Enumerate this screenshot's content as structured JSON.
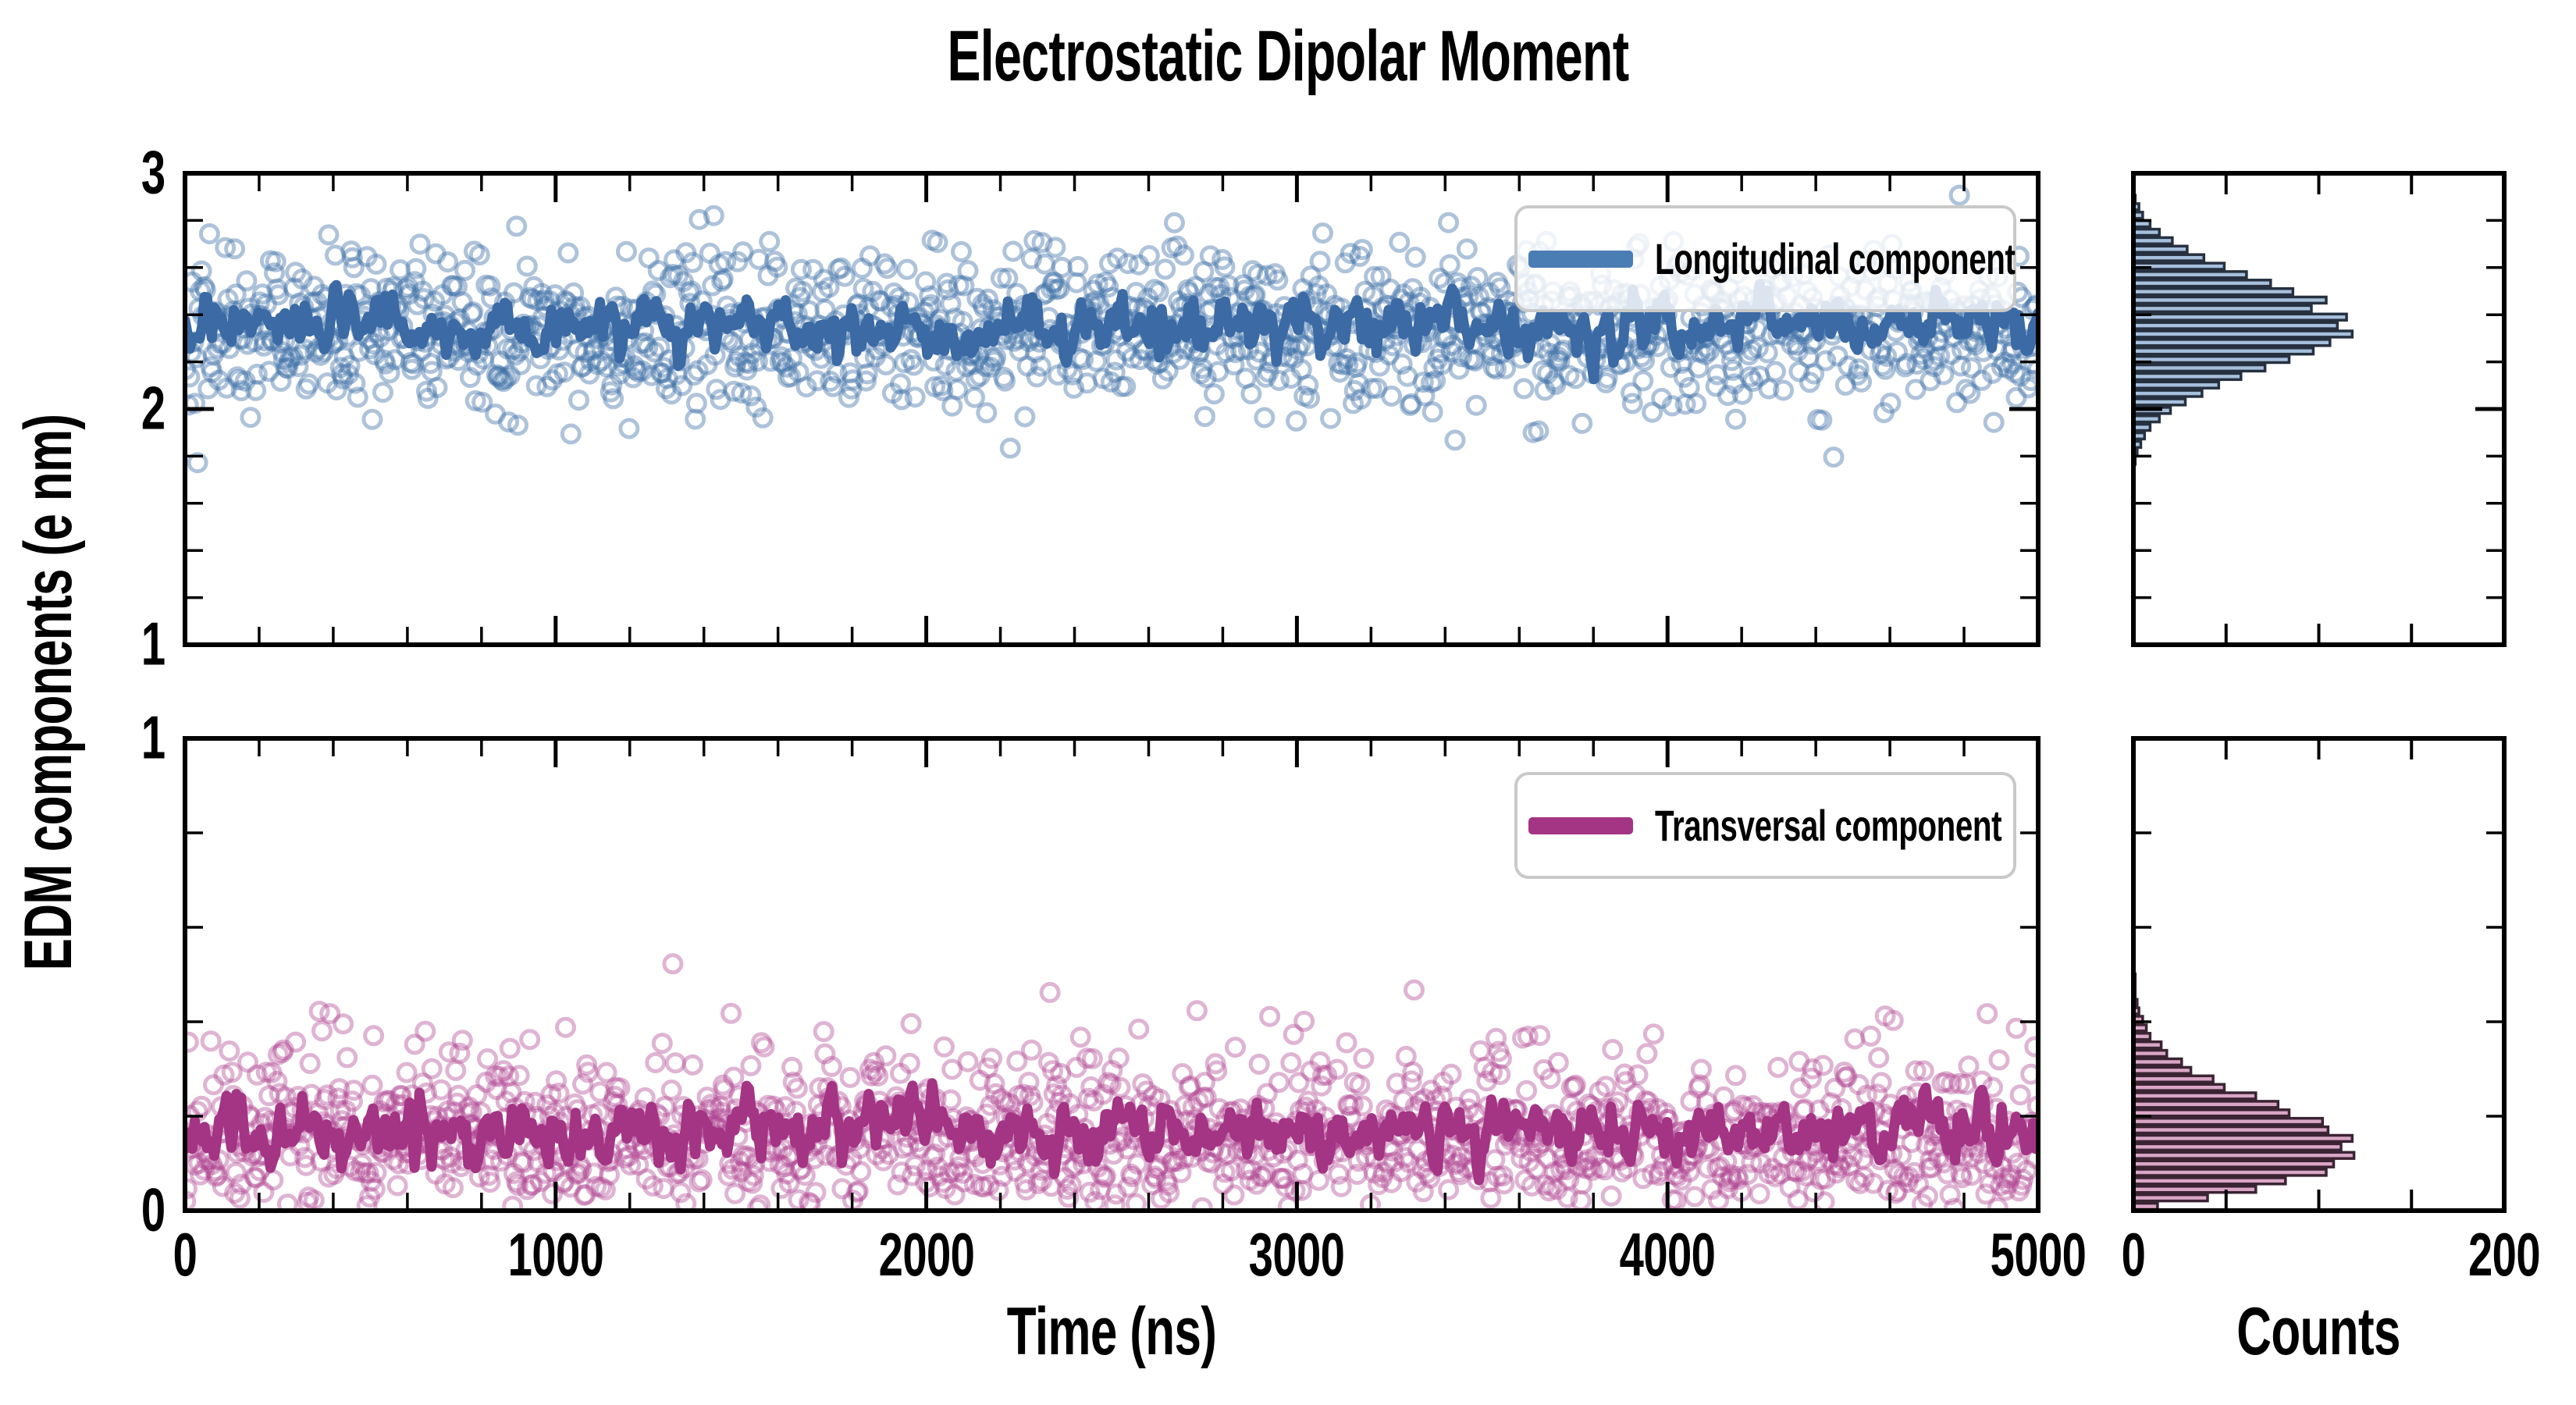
{
  "figure": {
    "title": "Electrostatic Dipolar Moment",
    "xlabel": "Time (ns)",
    "ylabel": "EDM components (e nm)",
    "counts_label": "Counts"
  },
  "chart_data": {
    "type": "scatter",
    "subtype": "timeseries-with-mean-line-and-marginal-histograms",
    "title": "Electrostatic Dipolar Moment",
    "xlabel": "Time (ns)",
    "ylabel": "EDM components (e nm)",
    "x_range": [
      0,
      5000
    ],
    "x_major_ticks": [
      0,
      1000,
      2000,
      3000,
      4000,
      5000
    ],
    "x_minor_step": 200,
    "grid": false,
    "counts_axis": {
      "label": "Counts",
      "range": [
        0,
        200
      ],
      "labeled_ticks": [
        0,
        200
      ],
      "minor_ticks": [
        50,
        100,
        150
      ]
    },
    "panels": [
      {
        "name": "Longitudinal component",
        "ylim": [
          1,
          3
        ],
        "y_major_ticks": [
          1,
          2,
          3
        ],
        "y_minor_step": 0.2,
        "n_points": 1400,
        "scatter_distribution": {
          "type": "normal",
          "mean": 2.33,
          "std": 0.17
        },
        "mean_line": {
          "level": 2.36,
          "fluctuation_sd": 0.05,
          "n_samples": 760
        },
        "histogram": {
          "bin_start": 1.76,
          "bin_width": 0.036,
          "counts": [
            1,
            2,
            4,
            6,
            9,
            14,
            20,
            28,
            37,
            46,
            58,
            71,
            84,
            97,
            106,
            118,
            110,
            115,
            96,
            104,
            86,
            74,
            61,
            49,
            38,
            29,
            21,
            14,
            9,
            5,
            3,
            1
          ],
          "peak_count": 118
        },
        "colors": {
          "line": "#3b6aa5",
          "scatter": "#3e6fa8",
          "scatter_opacity": 0.42,
          "hist_fill": "#a6bfdc",
          "hist_edge": "#26303f",
          "legend_swatch": "#4b7db5"
        },
        "seed": 42
      },
      {
        "name": "Transversal component",
        "ylim": [
          0,
          1
        ],
        "y_major_ticks": [
          0,
          1
        ],
        "y_minor_step": 0.2,
        "n_points": 1400,
        "scatter_distribution": {
          "type": "rayleigh",
          "sigma": 0.13
        },
        "mean_line": {
          "level": 0.168,
          "fluctuation_sd": 0.028,
          "n_samples": 760
        },
        "histogram": {
          "bin_start": 0.0,
          "bin_width": 0.018,
          "counts": [
            13,
            40,
            66,
            82,
            104,
            108,
            119,
            112,
            118,
            105,
            102,
            84,
            78,
            66,
            49,
            43,
            31,
            26,
            18,
            15,
            9,
            7,
            5,
            3,
            2,
            1,
            1,
            1,
            0,
            0
          ],
          "peak_count": 119
        },
        "colors": {
          "line": "#a43484",
          "scatter": "#ae4390",
          "scatter_opacity": 0.4,
          "hist_fill": "#daa6c6",
          "hist_edge": "#3a2433",
          "legend_swatch": "#a43484"
        },
        "seed": 7
      }
    ],
    "legend": [
      {
        "label": "Longitudinal component",
        "color": "#4b7db5"
      },
      {
        "label": "Transversal component",
        "color": "#a43484"
      }
    ],
    "legend_position": "upper right"
  },
  "style": {
    "frame_color": "#000000",
    "background": "#ffffff",
    "legend_border": "#c9c9c9"
  }
}
